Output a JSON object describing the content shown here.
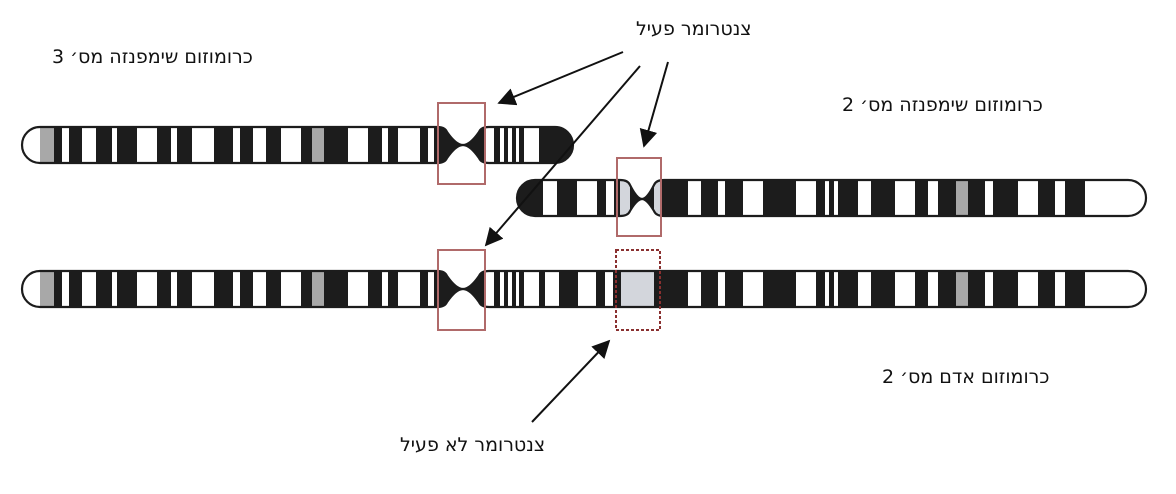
{
  "labels": {
    "chimp_chr3": "כרומוזום שימפנזה מס׳ 3",
    "active_centromere": "צנטרומר פעיל",
    "chimp_chr2": "כרומוזום שימפנזה מס׳ 2",
    "human_chr2": "כרומוזום אדם מס׳ 2",
    "inactive_centromere": "צנטרומר לא פעיל"
  },
  "colors": {
    "chromosome_dark": "#1c1c1c",
    "band_light": "#ffffff",
    "band_gray": "#a8a8a8",
    "centromere_fill": "#d3d6dc",
    "highlight_box": "#b06a6a",
    "arrow": "#111111"
  }
}
